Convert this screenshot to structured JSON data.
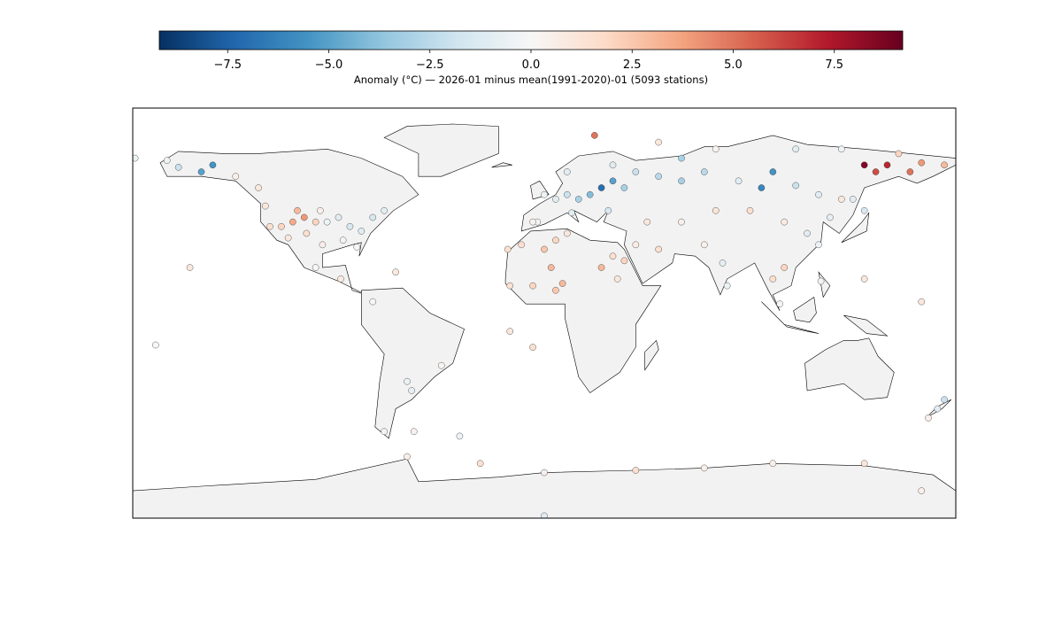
{
  "colorbar": {
    "label": "Anomaly (°C) — 2026-01 minus mean(1991-2020)-01 (5093 stations)",
    "clim": [
      -9.19,
      9.19
    ],
    "ticks": [
      {
        "value": -7.5,
        "label": "−7.5"
      },
      {
        "value": -5,
        "label": "−5.0"
      },
      {
        "value": -2.5,
        "label": "−2.5"
      },
      {
        "value": 0,
        "label": "0.0"
      },
      {
        "value": 2.5,
        "label": "2.5"
      },
      {
        "value": 5,
        "label": "5.0"
      },
      {
        "value": 7.5,
        "label": "7.5"
      }
    ],
    "colormap": [
      "#053061",
      "#2166ac",
      "#4393c3",
      "#92c5de",
      "#d1e5f0",
      "#f7f7f7",
      "#fddbc7",
      "#f4a582",
      "#d6604d",
      "#b2182b",
      "#67001f"
    ]
  },
  "map": {
    "xlim": [
      -180,
      180
    ],
    "ylim": [
      -90,
      90
    ]
  },
  "stations": {
    "lon": [
      -110,
      -105,
      -108,
      -115,
      -120,
      -100,
      -104,
      -112,
      -98,
      -95,
      -90,
      -85,
      -80,
      -75,
      -88,
      -82,
      -97,
      -122,
      -70,
      -150,
      -160,
      -145,
      -135,
      -125,
      -165,
      -179,
      -100,
      -89,
      -75,
      -65,
      -58,
      -60,
      -70,
      -45,
      25,
      30,
      20,
      15,
      10,
      5,
      0,
      -3,
      12,
      28,
      35,
      40,
      30,
      50,
      60,
      70,
      85,
      100,
      95,
      110,
      120,
      130,
      135,
      140,
      125,
      115,
      120,
      105,
      90,
      75,
      60,
      45,
      40,
      35,
      50,
      70,
      78,
      80,
      150,
      160,
      165,
      175,
      140,
      145,
      155,
      130,
      110,
      60,
      75,
      50,
      22,
      -10,
      0,
      5,
      10,
      -15,
      -5,
      5,
      8,
      30,
      32,
      25,
      3,
      -5,
      -16,
      100,
      105,
      121,
      103,
      10,
      172,
      175,
      168,
      -155,
      -170,
      140,
      165,
      -15,
      -5,
      -57,
      -37,
      0,
      40,
      70,
      100,
      140,
      165,
      -60,
      -28,
      0
    ],
    "lat": [
      40,
      42,
      45,
      38,
      38,
      40,
      35,
      33,
      45,
      40,
      42,
      38,
      36,
      42,
      32,
      29,
      30,
      47,
      45,
      62,
      64,
      65,
      60,
      55,
      67,
      68,
      20,
      15,
      5,
      18,
      -34,
      -30,
      -52,
      -23,
      55,
      58,
      52,
      50,
      52,
      50,
      52,
      40,
      44,
      45,
      55,
      62,
      65,
      60,
      58,
      62,
      58,
      62,
      55,
      56,
      52,
      50,
      50,
      45,
      42,
      35,
      30,
      40,
      45,
      45,
      40,
      40,
      30,
      23,
      28,
      30,
      22,
      12,
      65,
      62,
      66,
      65,
      65,
      62,
      70,
      72,
      72,
      68,
      72,
      75,
      78,
      30,
      28,
      32,
      35,
      12,
      12,
      10,
      13,
      25,
      15,
      20,
      20,
      40,
      28,
      15,
      20,
      14,
      4,
      62,
      -42,
      -38,
      -46,
      20,
      -14,
      15,
      5,
      -8,
      -15,
      -52,
      -54,
      -70,
      -69,
      -68,
      -66,
      -66,
      -78,
      -63,
      -66,
      -89
    ],
    "anomaly": [
      3.5,
      4,
      3,
      2,
      1.5,
      2,
      1.5,
      1,
      0.5,
      -0.5,
      -1,
      -1.5,
      -1,
      -1.5,
      -0.3,
      0.2,
      0.5,
      1,
      -1,
      -5,
      -2,
      -5.5,
      0.5,
      1,
      -0.5,
      -0.5,
      -0.2,
      0.8,
      -0.2,
      1,
      -0.8,
      -0.5,
      0.3,
      0.2,
      -7,
      -5,
      -4,
      -3,
      -2,
      -1,
      -0.5,
      -0.2,
      -1,
      -1.5,
      -3,
      -2,
      -1,
      -2.5,
      -3,
      -2.5,
      -1,
      -5.5,
      -6,
      -2,
      -1,
      1,
      -1,
      -1.5,
      -0.8,
      -1,
      -0.5,
      0.8,
      1.5,
      1.2,
      0.5,
      1,
      0.7,
      2,
      1.5,
      0.5,
      -0.8,
      -0.5,
      7,
      5,
      4,
      3,
      8.5,
      6,
      2,
      -0.5,
      -1,
      -3,
      0.3,
      1,
      5,
      1.5,
      2.5,
      2,
      1,
      1.5,
      2,
      2.5,
      3,
      1.5,
      1,
      3,
      3,
      0.3,
      1.5,
      1.5,
      2,
      -0.3,
      -0.2,
      -1,
      -1,
      -2,
      0.5,
      1,
      0,
      1,
      1,
      1,
      1.5,
      0.3,
      -0.5,
      0.5,
      1.5,
      0.5,
      0.5,
      1.2,
      0.5,
      0.5,
      1.5,
      -1
    ]
  }
}
